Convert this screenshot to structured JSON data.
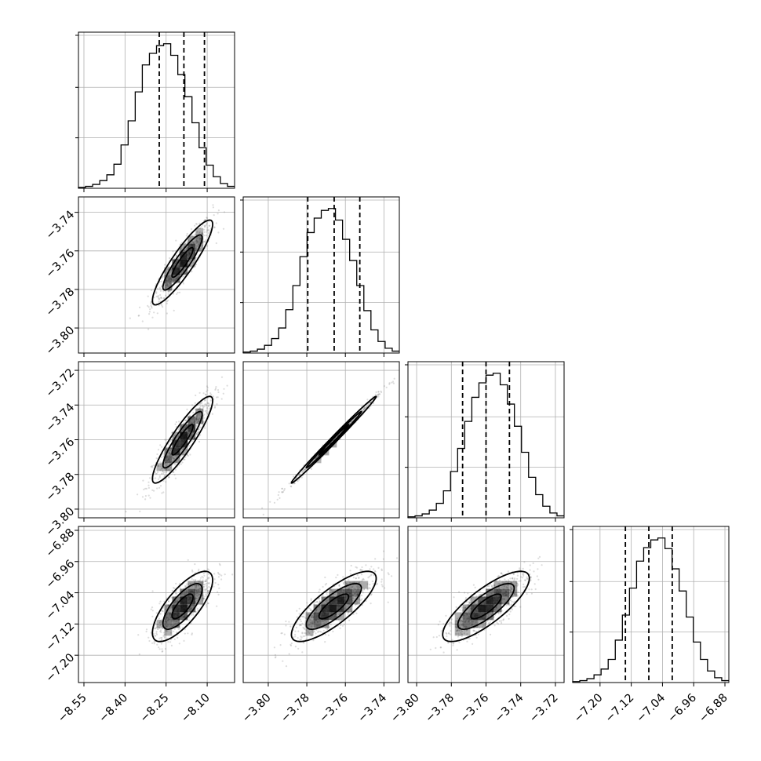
{
  "chart_data": {
    "type": "corner",
    "params": [
      {
        "range": [
          -8.57,
          -8.0
        ],
        "ticks": [
          "−8.55",
          "−8.40",
          "−8.25",
          "−8.10"
        ],
        "tick_values": [
          -8.55,
          -8.4,
          -8.25,
          -8.1
        ],
        "quantiles": [
          -8.275,
          -8.185,
          -8.11
        ],
        "mean": -8.19,
        "sd": 0.055
      },
      {
        "range": [
          -3.813,
          -3.732
        ],
        "ticks": [
          "−3.80",
          "−3.78",
          "−3.76",
          "−3.74"
        ],
        "tick_values": [
          -3.8,
          -3.78,
          -3.76,
          -3.74
        ],
        "quantiles": [
          -3.7795,
          -3.7658,
          -3.7525
        ],
        "mean": -3.766,
        "sd": 0.011
      },
      {
        "range": [
          -3.805,
          -3.715
        ],
        "ticks": [
          "−3.80",
          "−3.78",
          "−3.76",
          "−3.74",
          "−3.72"
        ],
        "tick_values": [
          -3.8,
          -3.78,
          -3.76,
          -3.74,
          -3.72
        ],
        "quantiles": [
          -3.7735,
          -3.76,
          -3.7465
        ],
        "mean": -3.76,
        "sd": 0.0125
      },
      {
        "range": [
          -7.27,
          -6.87
        ],
        "ticks": [
          "−7.20",
          "−7.12",
          "−7.04",
          "−6.96",
          "−6.88"
        ],
        "tick_values": [
          -7.2,
          -7.12,
          -7.04,
          -6.96,
          -6.88
        ],
        "quantiles": [
          -7.135,
          -7.075,
          -7.015
        ],
        "mean": -7.075,
        "sd": 0.045
      }
    ],
    "correlations": [
      [
        1,
        0.9,
        0.9,
        0.75
      ],
      [
        0.9,
        1,
        0.995,
        0.8
      ],
      [
        0.9,
        0.995,
        1,
        0.8
      ],
      [
        0.75,
        0.8,
        0.8,
        1
      ]
    ],
    "histograms": [
      [
        1,
        2,
        4,
        8,
        14,
        25,
        45,
        70,
        100,
        128,
        140,
        148,
        150,
        138,
        118,
        95,
        68,
        42,
        24,
        12,
        5,
        2
      ],
      [
        1,
        2,
        4,
        8,
        15,
        26,
        45,
        70,
        100,
        125,
        140,
        148,
        150,
        138,
        118,
        96,
        70,
        44,
        24,
        12,
        5,
        2
      ],
      [
        1,
        2,
        4,
        8,
        15,
        28,
        48,
        72,
        100,
        125,
        140,
        148,
        150,
        138,
        118,
        95,
        68,
        42,
        24,
        12,
        5,
        2
      ],
      [
        1,
        2,
        4,
        8,
        14,
        24,
        44,
        70,
        98,
        126,
        140,
        148,
        150,
        139,
        118,
        95,
        68,
        42,
        24,
        12,
        5,
        2
      ]
    ],
    "grid": true,
    "title": "",
    "xlabel": "",
    "ylabel": ""
  }
}
